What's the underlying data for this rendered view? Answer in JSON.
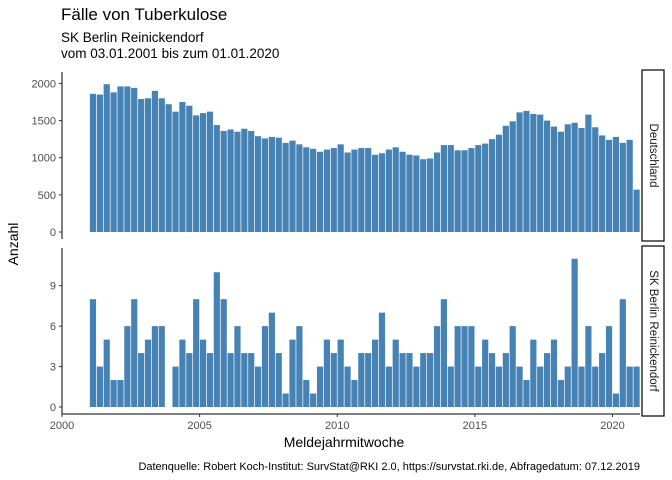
{
  "title": "Fälle von Tuberkulose",
  "subtitle_line1": "SK Berlin Reinickendorf",
  "subtitle_line2": " vom 03.01.2001 bis zum 01.01.2020",
  "xlabel": "Meldejahrmitwoche",
  "ylabel": "Anzahl",
  "caption": "Datenquelle: Robert Koch-Institut: SurvStat@RKI 2.0, https://survstat.rki.de, Abfragedatum: 07.12.2019",
  "chart_data": {
    "type": "bar",
    "bar_color": "#4682B4",
    "x_ticks": [
      2000,
      2005,
      2010,
      2015,
      2020
    ],
    "xlim": [
      2000,
      2021
    ],
    "x_start": 2001.0,
    "x_step": 0.25,
    "panels": [
      {
        "strip_label": "Deutschland",
        "ylim": [
          0,
          2100
        ],
        "y_ticks": [
          0,
          500,
          1000,
          1500,
          2000
        ],
        "values": [
          1860,
          1850,
          1990,
          1880,
          1960,
          1960,
          1940,
          1790,
          1800,
          1900,
          1800,
          1720,
          1620,
          1750,
          1700,
          1570,
          1600,
          1620,
          1440,
          1360,
          1380,
          1350,
          1390,
          1360,
          1290,
          1260,
          1280,
          1270,
          1200,
          1230,
          1180,
          1140,
          1120,
          1080,
          1110,
          1130,
          1180,
          1070,
          1110,
          1130,
          1130,
          1040,
          1060,
          1110,
          1140,
          1080,
          1040,
          1030,
          980,
          990,
          1070,
          1170,
          1170,
          1100,
          1100,
          1130,
          1170,
          1190,
          1250,
          1310,
          1430,
          1490,
          1610,
          1630,
          1590,
          1580,
          1500,
          1420,
          1350,
          1450,
          1470,
          1400,
          1580,
          1410,
          1300,
          1240,
          1280,
          1200,
          1240,
          570
        ]
      },
      {
        "strip_label": "SK Berlin Reinickendorf",
        "ylim": [
          0,
          11.5
        ],
        "y_ticks": [
          0,
          3,
          6,
          9
        ],
        "values": [
          8,
          3,
          5,
          2,
          2,
          6,
          8,
          4,
          5,
          6,
          6,
          0,
          3,
          5,
          4,
          8,
          5,
          4,
          10,
          8,
          4,
          6,
          4,
          4,
          3,
          6,
          7,
          4,
          1,
          5,
          6,
          2,
          1,
          3,
          5,
          4,
          5,
          3,
          2,
          4,
          4,
          5,
          7,
          3,
          5,
          4,
          4,
          3,
          4,
          4,
          6,
          8,
          3,
          6,
          6,
          6,
          3,
          5,
          4,
          3,
          4,
          6,
          3,
          2,
          5,
          3,
          4,
          5,
          2,
          3,
          11,
          3,
          6,
          3,
          4,
          6,
          1,
          8,
          3,
          3
        ]
      }
    ]
  }
}
